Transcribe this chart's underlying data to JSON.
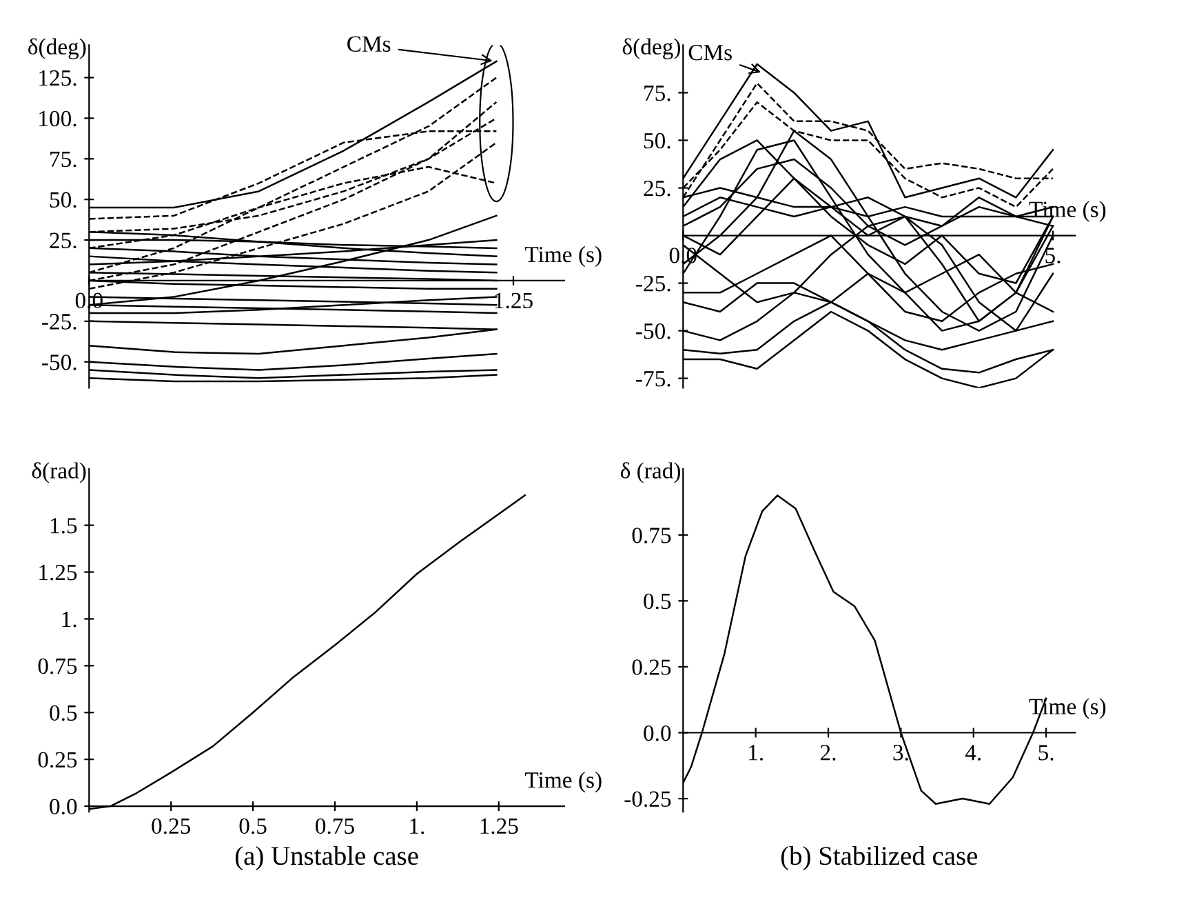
{
  "chart_data": [
    {
      "type": "line",
      "ylabel": "δ(deg)",
      "xlabel": "Time (s)",
      "color": "#000000",
      "xlim": [
        0,
        1.4
      ],
      "ylim": [
        -66,
        145
      ],
      "xticks": [
        {
          "value": 0,
          "label": "0.0"
        },
        {
          "value": 1.25,
          "label": "1.25"
        }
      ],
      "yticks": [
        {
          "value": -50,
          "label": "-50."
        },
        {
          "value": -25,
          "label": "-25."
        },
        {
          "value": 25,
          "label": "25."
        },
        {
          "value": 50,
          "label": "50."
        },
        {
          "value": 75,
          "label": "75."
        },
        {
          "value": 100,
          "label": "100."
        },
        {
          "value": 125,
          "label": "125."
        }
      ],
      "x": [
        0,
        0.25,
        0.5,
        0.75,
        1.0,
        1.2
      ],
      "annotations": [
        {
          "text": "CMs",
          "x": 1.2,
          "y": 135
        }
      ],
      "series": [
        {
          "values": [
            45,
            45,
            55,
            80,
            110,
            135
          ]
        },
        {
          "values": [
            38,
            40,
            60,
            85,
            92,
            92
          ],
          "line_style": "dashed"
        },
        {
          "values": [
            5,
            20,
            45,
            70,
            95,
            125
          ],
          "line_style": "dashed"
        },
        {
          "values": [
            0,
            10,
            30,
            50,
            75,
            110
          ],
          "line_style": "dashed"
        },
        {
          "values": [
            -5,
            5,
            20,
            35,
            55,
            85
          ],
          "line_style": "dashed"
        },
        {
          "values": [
            30,
            32,
            40,
            55,
            75,
            100
          ],
          "line_style": "dashed"
        },
        {
          "values": [
            20,
            28,
            45,
            60,
            70,
            60
          ],
          "line_style": "dashed"
        },
        {
          "values": [
            30,
            28,
            24,
            20,
            17,
            15
          ]
        },
        {
          "values": [
            25,
            25,
            24,
            22,
            21,
            20
          ]
        },
        {
          "values": [
            20,
            18,
            15,
            13,
            11,
            10
          ]
        },
        {
          "values": [
            15,
            12,
            10,
            8,
            6,
            5
          ]
        },
        {
          "values": [
            10,
            12,
            15,
            18,
            22,
            25
          ]
        },
        {
          "values": [
            5,
            4,
            3,
            2,
            1,
            0
          ]
        },
        {
          "values": [
            0,
            -2,
            -3,
            -4,
            -5,
            -5
          ]
        },
        {
          "values": [
            -10,
            -11,
            -12,
            -13,
            -14,
            -15
          ]
        },
        {
          "values": [
            -15,
            -16,
            -17,
            -18,
            -19,
            -20
          ]
        },
        {
          "values": [
            -20,
            -20,
            -18,
            -15,
            -12,
            -10
          ]
        },
        {
          "values": [
            -25,
            -26,
            -27,
            -28,
            -29,
            -30
          ]
        },
        {
          "values": [
            -15,
            -10,
            0,
            12,
            25,
            40
          ]
        },
        {
          "values": [
            -40,
            -44,
            -45,
            -40,
            -35,
            -30
          ]
        },
        {
          "values": [
            -50,
            -53,
            -55,
            -52,
            -48,
            -45
          ]
        },
        {
          "values": [
            -55,
            -58,
            -60,
            -58,
            -56,
            -55
          ]
        },
        {
          "values": [
            -60,
            -62,
            -62,
            -61,
            -60,
            -58
          ]
        }
      ]
    },
    {
      "type": "line",
      "ylabel": "δ(deg)",
      "xlabel": "Time (s)",
      "color": "#000000",
      "xlim": [
        0,
        5.3
      ],
      "ylim": [
        -80,
        100
      ],
      "xticks": [
        {
          "value": 0,
          "label": "0.0"
        },
        {
          "value": 5,
          "label": "5."
        }
      ],
      "yticks": [
        {
          "value": -75,
          "label": "-75."
        },
        {
          "value": -50,
          "label": "-50."
        },
        {
          "value": -25,
          "label": "-25."
        },
        {
          "value": 25,
          "label": "25."
        },
        {
          "value": 50,
          "label": "50."
        },
        {
          "value": 75,
          "label": "75."
        }
      ],
      "x": [
        0,
        0.5,
        1,
        1.5,
        2,
        2.5,
        3,
        3.5,
        4,
        4.5,
        5
      ],
      "annotations": [
        {
          "text": "CMs",
          "x": 1.1,
          "y": 85
        }
      ],
      "series": [
        {
          "values": [
            30,
            60,
            90,
            75,
            55,
            60,
            20,
            25,
            30,
            20,
            45
          ]
        },
        {
          "values": [
            20,
            50,
            80,
            60,
            60,
            55,
            35,
            38,
            35,
            30,
            30
          ],
          "line_style": "dashed"
        },
        {
          "values": [
            25,
            45,
            70,
            55,
            50,
            50,
            30,
            20,
            25,
            15,
            35
          ],
          "line_style": "dashed"
        },
        {
          "values": [
            -65,
            -65,
            -70,
            -55,
            -40,
            -50,
            -65,
            -75,
            -80,
            -75,
            -60
          ]
        },
        {
          "values": [
            -60,
            -62,
            -60,
            -45,
            -35,
            -45,
            -60,
            -70,
            -72,
            -65,
            -60
          ]
        },
        {
          "values": [
            -50,
            -55,
            -45,
            -30,
            -35,
            -45,
            -55,
            -60,
            -55,
            -50,
            -45
          ]
        },
        {
          "values": [
            -20,
            10,
            45,
            50,
            20,
            -10,
            -30,
            -20,
            -10,
            -30,
            10
          ]
        },
        {
          "values": [
            -15,
            0,
            20,
            55,
            40,
            10,
            -20,
            -40,
            -50,
            -40,
            0
          ]
        },
        {
          "values": [
            10,
            20,
            15,
            10,
            15,
            20,
            10,
            5,
            15,
            10,
            15
          ]
        },
        {
          "values": [
            0,
            -10,
            10,
            30,
            15,
            0,
            10,
            -15,
            -45,
            -30,
            5
          ]
        },
        {
          "values": [
            -30,
            -30,
            -20,
            -10,
            0,
            -20,
            -40,
            -45,
            -30,
            -20,
            -15
          ]
        },
        {
          "values": [
            15,
            40,
            50,
            30,
            10,
            -5,
            -15,
            0,
            -20,
            -25,
            10
          ]
        },
        {
          "values": [
            20,
            25,
            20,
            15,
            15,
            10,
            15,
            10,
            10,
            10,
            10
          ]
        },
        {
          "values": [
            -35,
            -40,
            -25,
            -25,
            -35,
            -20,
            -30,
            -50,
            -45,
            -30,
            -40
          ]
        },
        {
          "values": [
            5,
            15,
            35,
            40,
            25,
            5,
            -5,
            5,
            20,
            10,
            5
          ]
        },
        {
          "values": [
            -5,
            -20,
            -35,
            -30,
            -10,
            5,
            10,
            -5,
            -35,
            -50,
            -20
          ]
        }
      ]
    },
    {
      "type": "line",
      "ylabel": "δ(rad)",
      "xlabel": "Time (s)",
      "color": "#000000",
      "xlim": [
        0,
        1.45
      ],
      "ylim": [
        -0.03,
        1.8
      ],
      "xticks": [
        {
          "value": 0.25,
          "label": "0.25"
        },
        {
          "value": 0.5,
          "label": "0.5"
        },
        {
          "value": 0.75,
          "label": "0.75"
        },
        {
          "value": 1,
          "label": "1."
        },
        {
          "value": 1.25,
          "label": "1.25"
        }
      ],
      "yticks": [
        {
          "value": 0,
          "label": "0.0"
        },
        {
          "value": 0.25,
          "label": "0.25"
        },
        {
          "value": 0.5,
          "label": "0.5"
        },
        {
          "value": 0.75,
          "label": "0.75"
        },
        {
          "value": 1,
          "label": "1."
        },
        {
          "value": 1.25,
          "label": "1.25"
        },
        {
          "value": 1.5,
          "label": "1.5"
        }
      ],
      "annotations": [
        "(a) Unstable case"
      ],
      "x": [
        0,
        0.065,
        0.145,
        0.25,
        0.378,
        0.5,
        0.624,
        0.75,
        0.87,
        1.0,
        1.13,
        1.33
      ],
      "series": [
        {
          "values": [
            -0.015,
            0,
            0.07,
            0.18,
            0.32,
            0.5,
            0.69,
            0.86,
            1.03,
            1.24,
            1.41,
            1.66
          ]
        }
      ]
    },
    {
      "type": "line",
      "ylabel": "δ (rad)",
      "xlabel": "Time (s)",
      "color": "#000000",
      "xlim": [
        0,
        5.4
      ],
      "ylim": [
        -0.3,
        1.0
      ],
      "xticks": [
        {
          "value": 1,
          "label": "1."
        },
        {
          "value": 2,
          "label": "2."
        },
        {
          "value": 3,
          "label": "3."
        },
        {
          "value": 4,
          "label": "4."
        },
        {
          "value": 5,
          "label": "5."
        }
      ],
      "yticks": [
        {
          "value": -0.25,
          "label": "-0.25"
        },
        {
          "value": 0,
          "label": "0.0"
        },
        {
          "value": 0.25,
          "label": "0.25"
        },
        {
          "value": 0.5,
          "label": "0.5"
        },
        {
          "value": 0.75,
          "label": "0.75"
        }
      ],
      "annotations": [
        "(b) Stabilized case"
      ],
      "x": [
        0,
        0.11,
        0.26,
        0.57,
        0.86,
        1.09,
        1.3,
        1.55,
        1.81,
        2.07,
        2.36,
        2.64,
        3.0,
        3.28,
        3.48,
        3.85,
        4.22,
        4.54,
        4.82,
        5.0
      ],
      "series": [
        {
          "values": [
            -0.19,
            -0.13,
            0,
            0.3,
            0.67,
            0.84,
            0.9,
            0.85,
            0.69,
            0.535,
            0.48,
            0.35,
            0,
            -0.22,
            -0.27,
            -0.25,
            -0.27,
            -0.17,
            0,
            0.13
          ]
        }
      ]
    }
  ]
}
